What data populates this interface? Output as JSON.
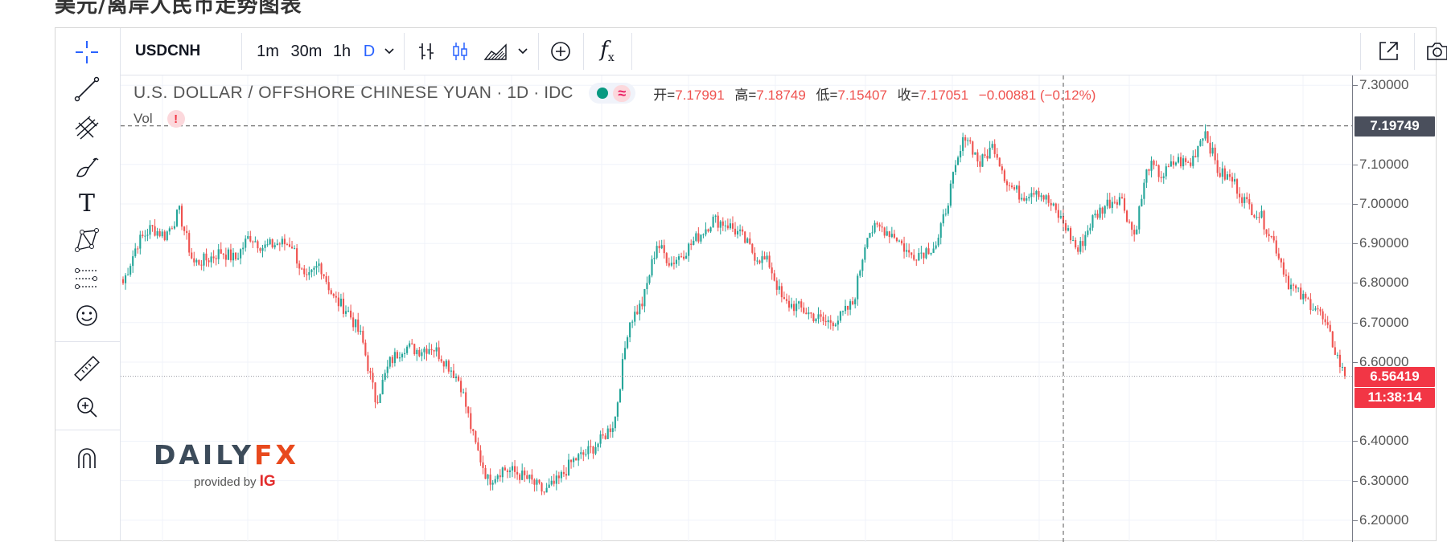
{
  "page": {
    "title": "美元/离岸人民币走势图表"
  },
  "toolbar": {
    "symbol": "USDCNH",
    "intervals": [
      {
        "label": "1m",
        "active": false
      },
      {
        "label": "30m",
        "active": false
      },
      {
        "label": "1h",
        "active": false
      },
      {
        "label": "D",
        "active": true
      }
    ],
    "icons": [
      "chevron-down-icon",
      "bar-chart-icon",
      "candle-chart-icon",
      "area-chart-icon",
      "chevron-down-icon",
      "add-compare-icon",
      "indicators-icon",
      "fullscreen-icon",
      "camera-icon"
    ],
    "indicators_glyph": "f",
    "indicators_sub": "x"
  },
  "left_tools": {
    "icons": [
      "crosshair-icon",
      "trend-line-icon",
      "pitchfork-icon",
      "brush-icon",
      "text-tool-icon",
      "pattern-icon",
      "forecast-icon",
      "emoji-icon",
      "ruler-icon",
      "zoom-in-icon",
      "magnet-icon"
    ],
    "text_tool_glyph": "T"
  },
  "legend": {
    "title": "U.S. DOLLAR / OFFSHORE CHINESE YUAN",
    "sep1": "·",
    "interval": "1D",
    "sep2": "·",
    "exchange": "IDC",
    "approx_glyph": "≈",
    "open_label": "开=",
    "open": "7.17991",
    "high_label": "高=",
    "high": "7.18749",
    "low_label": "低=",
    "low": "7.15407",
    "close_label": "收=",
    "close": "7.17051",
    "change": "−0.00881 (−0.12%)"
  },
  "volume": {
    "label": "Vol",
    "warning": "!"
  },
  "watermark": {
    "logo_main": "DAILY",
    "logo_accent": "FX",
    "provided_by": "provided by",
    "provider": "IG"
  },
  "price_axis": {
    "ticks": [
      "7.30000",
      "7.10000",
      "7.00000",
      "6.90000",
      "6.80000",
      "6.70000",
      "6.60000",
      "6.40000",
      "6.30000",
      "6.20000"
    ],
    "crosshair_label": "7.19749",
    "last_price_label": "6.56419",
    "countdown_label": "11:38:14"
  },
  "colors": {
    "up": "#26a69a",
    "down": "#ef5350",
    "crosshair_badge": "#4a4f5c",
    "last_price_badge": "#f23645"
  },
  "chart_data": {
    "type": "candlestick",
    "title": "U.S. DOLLAR / OFFSHORE CHINESE YUAN",
    "interval": "1D",
    "ylim": [
      6.145,
      7.325
    ],
    "y_ticks": [
      7.3,
      7.1,
      7.0,
      6.9,
      6.8,
      6.7,
      6.6,
      6.4,
      6.3,
      6.2
    ],
    "grid": true,
    "crosshair_price": 7.19749,
    "last_price": 6.56419,
    "close_path": [
      6.8,
      6.9,
      6.94,
      6.92,
      6.98,
      6.85,
      6.86,
      6.88,
      6.86,
      6.92,
      6.89,
      6.9,
      6.9,
      6.8,
      6.85,
      6.76,
      6.73,
      6.66,
      6.5,
      6.6,
      6.64,
      6.63,
      6.64,
      6.6,
      6.55,
      6.4,
      6.3,
      6.33,
      6.32,
      6.3,
      6.27,
      6.3,
      6.35,
      6.37,
      6.4,
      6.45,
      6.7,
      6.75,
      6.9,
      6.85,
      6.88,
      6.92,
      6.96,
      6.95,
      6.92,
      6.87,
      6.85,
      6.75,
      6.74,
      6.72,
      6.7,
      6.71,
      6.75,
      6.93,
      6.94,
      6.92,
      6.87,
      6.88,
      6.9,
      7.05,
      7.18,
      7.1,
      7.15,
      7.05,
      7.02,
      7.04,
      7.0,
      6.95,
      6.88,
      6.96,
      7.0,
      7.02,
      6.92,
      7.1,
      7.07,
      7.11,
      7.1,
      7.19,
      7.08,
      7.06,
      7.0,
      6.97,
      6.9,
      6.8,
      6.76,
      6.74,
      6.66,
      6.56
    ]
  }
}
